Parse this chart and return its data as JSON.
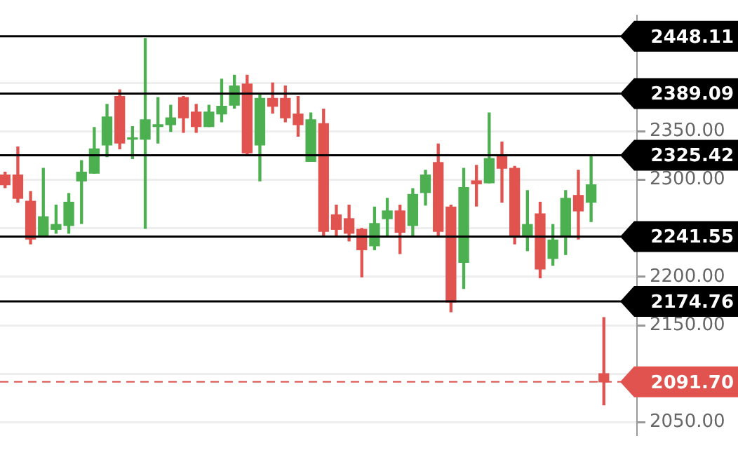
{
  "chart_data": {
    "type": "candlestick",
    "categories": [
      null,
      null,
      null,
      null,
      null,
      null,
      null,
      null,
      null,
      null,
      null,
      null,
      null,
      null,
      null,
      null,
      null,
      null,
      null,
      null,
      null,
      null,
      null,
      null,
      null,
      null,
      null,
      null,
      null,
      null,
      null,
      null,
      null,
      null,
      null,
      null,
      null,
      null,
      null,
      null,
      null,
      null,
      null,
      null,
      null,
      null,
      null,
      null
    ],
    "ohlc": [
      [
        2305,
        2308,
        2292,
        2295
      ],
      [
        2305,
        2334,
        2277,
        2281
      ],
      [
        2278,
        2288,
        2234,
        2239
      ],
      [
        2243,
        2312,
        2243,
        2262
      ],
      [
        2249,
        2274,
        2245,
        2254
      ],
      [
        2253,
        2286,
        2245,
        2277
      ],
      [
        2299,
        2320,
        2255,
        2308
      ],
      [
        2307,
        2354,
        2307,
        2332
      ],
      [
        2336,
        2378,
        2324,
        2365
      ],
      [
        2386,
        2393,
        2332,
        2338
      ],
      [
        2342,
        2355,
        2322,
        2343
      ],
      [
        2342,
        2446,
        2250,
        2362
      ],
      [
        2355,
        2385,
        2338,
        2357
      ],
      [
        2357,
        2377,
        2350,
        2364
      ],
      [
        2385,
        2386,
        2349,
        2364
      ],
      [
        2370,
        2378,
        2349,
        2355
      ],
      [
        2355,
        2377,
        2355,
        2370
      ],
      [
        2368,
        2404,
        2360,
        2376
      ],
      [
        2377,
        2408,
        2374,
        2397
      ],
      [
        2399,
        2408,
        2326,
        2328
      ],
      [
        2336,
        2389,
        2299,
        2384
      ],
      [
        2384,
        2400,
        2369,
        2376
      ],
      [
        2384,
        2397,
        2360,
        2364
      ],
      [
        2368,
        2386,
        2345,
        2357
      ],
      [
        2319,
        2369,
        2319,
        2362
      ],
      [
        2358,
        2373,
        2243,
        2247
      ],
      [
        2264,
        2274,
        2241,
        2249
      ],
      [
        2260,
        2274,
        2237,
        2245
      ],
      [
        2249,
        2250,
        2200,
        2228
      ],
      [
        2232,
        2272,
        2228,
        2255
      ],
      [
        2260,
        2281,
        2243,
        2268
      ],
      [
        2268,
        2274,
        2224,
        2246
      ],
      [
        2253,
        2291,
        2243,
        2285
      ],
      [
        2287,
        2310,
        2274,
        2305
      ],
      [
        2318,
        2337,
        2243,
        2247
      ],
      [
        2272,
        2274,
        2164,
        2174
      ],
      [
        2215,
        2312,
        2188,
        2292
      ],
      [
        2299,
        2315,
        2273,
        2296
      ],
      [
        2297,
        2369,
        2297,
        2322
      ],
      [
        2324,
        2339,
        2277,
        2312
      ],
      [
        2312,
        2314,
        2234,
        2241
      ],
      [
        2242,
        2289,
        2227,
        2254
      ],
      [
        2265,
        2277,
        2199,
        2208
      ],
      [
        2219,
        2254,
        2212,
        2238
      ],
      [
        2241,
        2289,
        2223,
        2281
      ],
      [
        2284,
        2310,
        2239,
        2268
      ],
      [
        2277,
        2324,
        2257,
        2295
      ],
      [
        2100,
        2158,
        2068,
        2091.7
      ]
    ],
    "colors": [
      "#e0534f",
      "#e0534f",
      "#e0534f",
      "#4caf50",
      "#4caf50",
      "#4caf50",
      "#4caf50",
      "#4caf50",
      "#4caf50",
      "#e0534f",
      "#4caf50",
      "#4caf50",
      "#4caf50",
      "#4caf50",
      "#e0534f",
      "#e0534f",
      "#4caf50",
      "#4caf50",
      "#4caf50",
      "#e0534f",
      "#4caf50",
      "#e0534f",
      "#e0534f",
      "#e0534f",
      "#4caf50",
      "#e0534f",
      "#e0534f",
      "#e0534f",
      "#e0534f",
      "#4caf50",
      "#4caf50",
      "#e0534f",
      "#4caf50",
      "#4caf50",
      "#e0534f",
      "#e0534f",
      "#4caf50",
      "#e0534f",
      "#4caf50",
      "#e0534f",
      "#e0534f",
      "#4caf50",
      "#e0534f",
      "#4caf50",
      "#4caf50",
      "#e0534f",
      "#4caf50",
      "#e0534f"
    ],
    "ylim": [
      2037,
      2470
    ],
    "yticks": [
      {
        "value": 2050,
        "label": "2050.00"
      },
      {
        "value": 2100,
        "label": null
      },
      {
        "value": 2150,
        "label": "2150.00"
      },
      {
        "value": 2200,
        "label": "2200.00"
      },
      {
        "value": 2250,
        "label": null
      },
      {
        "value": 2300,
        "label": "2300.00"
      },
      {
        "value": 2350,
        "label": "2350.00"
      },
      {
        "value": 2400,
        "label": null
      }
    ],
    "ref_lines": [
      {
        "axis": "y",
        "value": 2448.11,
        "label": "2448.11",
        "color": "#000000"
      },
      {
        "axis": "y",
        "value": 2389.09,
        "label": "2389.09",
        "color": "#000000"
      },
      {
        "axis": "y",
        "value": 2325.42,
        "label": "2325.42",
        "color": "#000000"
      },
      {
        "axis": "y",
        "value": 2241.55,
        "label": "2241.55",
        "color": "#000000"
      },
      {
        "axis": "y",
        "value": 2174.76,
        "label": "2174.76",
        "color": "#000000"
      },
      {
        "axis": "y",
        "value": 2091.7,
        "label": "2091.70",
        "color": "#e0534f",
        "line_style": "dashed"
      }
    ],
    "grid": "y",
    "tick_labels": "y"
  }
}
